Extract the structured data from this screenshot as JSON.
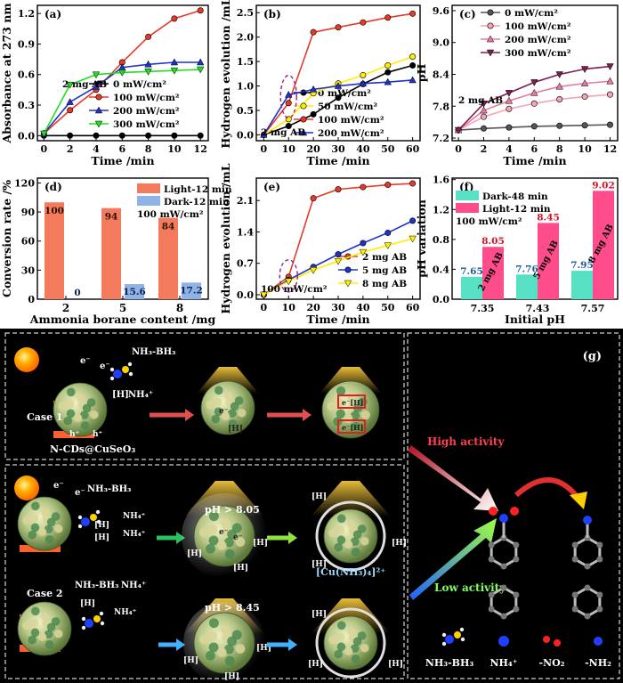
{
  "colors": {
    "black": "#000000",
    "red": "#e53a2a",
    "blue": "#1e32c8",
    "green": "#22dd22",
    "yellow": "#ffee00",
    "gray": "#555555",
    "pink1": "#f4a4b4",
    "pink2": "#e67aa0",
    "purple": "#7a1f4f",
    "salmon": "#f47a5e",
    "lightblue": "#8fb3e6",
    "cyan": "#57e0c4",
    "hotpink": "#ff4d8c",
    "scheme_bg": "#000000"
  },
  "chart_data": [
    {
      "panel": "(a)",
      "type": "line",
      "xlabel": "Time /min",
      "ylabel": "Absorbance at 273 nm",
      "xlim": [
        -0.5,
        12.6
      ],
      "ylim": [
        -0.05,
        1.28
      ],
      "xticks": [
        0,
        2,
        4,
        6,
        8,
        10,
        12
      ],
      "yticks": [
        0.0,
        0.3,
        0.6,
        0.9,
        1.2
      ],
      "xtick_labels": [
        "0",
        "2",
        "4",
        "6",
        "8",
        "10",
        "12"
      ],
      "ytick_labels": [
        "0.0",
        "0.3",
        "0.6",
        "0.9",
        "1.2"
      ],
      "annotation": "2 mg AB",
      "series": [
        {
          "name": "0 mW/cm²",
          "color": "black",
          "marker": "circle",
          "x": [
            0,
            2,
            4,
            6,
            8,
            10,
            12
          ],
          "y": [
            0.0,
            0.0,
            0.0,
            0.0,
            0.0,
            0.0,
            0.0
          ]
        },
        {
          "name": "100 mW/cm²",
          "color": "red",
          "marker": "circle",
          "x": [
            0,
            2,
            4,
            6,
            8,
            10,
            12
          ],
          "y": [
            0.02,
            0.25,
            0.45,
            0.72,
            0.97,
            1.15,
            1.23
          ]
        },
        {
          "name": "200 mW/cm²",
          "color": "blue",
          "marker": "triangle",
          "x": [
            0,
            2,
            4,
            6,
            8,
            10,
            12
          ],
          "y": [
            0.02,
            0.33,
            0.48,
            0.67,
            0.7,
            0.72,
            0.72
          ]
        },
        {
          "name": "300 mW/cm²",
          "color": "green",
          "marker": "down",
          "x": [
            0,
            2,
            4,
            6,
            8,
            10,
            12
          ],
          "y": [
            0.02,
            0.5,
            0.6,
            0.62,
            0.63,
            0.64,
            0.65
          ]
        }
      ]
    },
    {
      "panel": "(b)",
      "type": "line",
      "xlabel": "Time /min",
      "ylabel": "Hydrogen evolution /mL",
      "xlim": [
        -3,
        63
      ],
      "ylim": [
        -0.12,
        2.65
      ],
      "xticks": [
        0,
        10,
        20,
        30,
        40,
        50,
        60
      ],
      "yticks": [
        0.0,
        0.5,
        1.0,
        1.5,
        2.0,
        2.5
      ],
      "xtick_labels": [
        "0",
        "10",
        "20",
        "30",
        "40",
        "50",
        "60"
      ],
      "ytick_labels": [
        "0.0",
        "0.5",
        "1.0",
        "1.5",
        "2.0",
        "2.5"
      ],
      "annotation": "2 mg AB",
      "series": [
        {
          "name": "0 mW/cm²",
          "color": "black",
          "marker": "circle",
          "x": [
            0,
            10,
            20,
            30,
            40,
            50,
            60
          ],
          "y": [
            0.0,
            0.18,
            0.42,
            0.76,
            1.04,
            1.28,
            1.42
          ]
        },
        {
          "name": "50 mW/cm²",
          "color": "yellow",
          "marker": "circle",
          "x": [
            0,
            10,
            20,
            30,
            40,
            50,
            60
          ],
          "y": [
            0.0,
            0.32,
            0.85,
            1.05,
            1.22,
            1.42,
            1.6
          ]
        },
        {
          "name": "100 mW/cm²",
          "color": "red",
          "marker": "circle",
          "x": [
            0,
            10,
            20,
            30,
            40,
            50,
            60
          ],
          "y": [
            0.0,
            0.65,
            2.1,
            2.2,
            2.3,
            2.4,
            2.48
          ]
        },
        {
          "name": "200 mW/cm²",
          "color": "blue",
          "marker": "triangle",
          "x": [
            0,
            10,
            20,
            30,
            40,
            50,
            60
          ],
          "y": [
            0.0,
            0.82,
            0.93,
            1.0,
            1.05,
            1.08,
            1.12
          ]
        }
      ]
    },
    {
      "panel": "(c)",
      "type": "line",
      "xlabel": "Time /min",
      "ylabel": "pH",
      "xlim": [
        -0.5,
        12.6
      ],
      "ylim": [
        7.15,
        9.7
      ],
      "xticks": [
        0,
        2,
        4,
        6,
        8,
        10,
        12
      ],
      "yticks": [
        7.2,
        7.8,
        8.4,
        9.0,
        9.6
      ],
      "xtick_labels": [
        "0",
        "2",
        "4",
        "6",
        "8",
        "10",
        "12"
      ],
      "ytick_labels": [
        "7.2",
        "7.8",
        "8.4",
        "9.0",
        "9.6"
      ],
      "annotation": "2 mg AB",
      "series": [
        {
          "name": "0 mW/cm²",
          "color": "gray",
          "marker": "circle",
          "x": [
            0,
            2,
            4,
            6,
            8,
            10,
            12
          ],
          "y": [
            7.35,
            7.38,
            7.4,
            7.42,
            7.43,
            7.44,
            7.45
          ]
        },
        {
          "name": "100 mW/cm²",
          "color": "pink1",
          "marker": "circle",
          "x": [
            0,
            2,
            4,
            6,
            8,
            10,
            12
          ],
          "y": [
            7.35,
            7.6,
            7.75,
            7.85,
            7.93,
            7.98,
            8.02
          ]
        },
        {
          "name": "200 mW/cm²",
          "color": "pink2",
          "marker": "triangle",
          "x": [
            0,
            2,
            4,
            6,
            8,
            10,
            12
          ],
          "y": [
            7.35,
            7.72,
            7.9,
            8.05,
            8.17,
            8.23,
            8.27
          ]
        },
        {
          "name": "300 mW/cm²",
          "color": "purple",
          "marker": "down",
          "x": [
            0,
            2,
            4,
            6,
            8,
            10,
            12
          ],
          "y": [
            7.35,
            7.85,
            8.05,
            8.25,
            8.4,
            8.5,
            8.55
          ]
        }
      ]
    },
    {
      "panel": "(d)",
      "type": "bar",
      "xlabel": "Ammonia borane content /mg",
      "ylabel": "Conversion rate /%",
      "ylim": [
        0,
        125
      ],
      "yticks": [
        0,
        30,
        60,
        90,
        120
      ],
      "ytick_labels": [
        "0",
        "30",
        "60",
        "90",
        "120"
      ],
      "categories": [
        "2",
        "5",
        "8"
      ],
      "annotation": "100 mW/cm²",
      "series": [
        {
          "name": "Light-12 min",
          "color": "salmon",
          "values": [
            100,
            94,
            84
          ],
          "labels": [
            "100",
            "94",
            "84"
          ]
        },
        {
          "name": "Dark-12 min",
          "color": "lightblue",
          "values": [
            0,
            15.6,
            17.2
          ],
          "labels": [
            "0",
            "15.6",
            "17.2"
          ]
        }
      ]
    },
    {
      "panel": "(e)",
      "type": "line",
      "xlabel": "Time /min",
      "ylabel": "Hydrogen evolution /mL",
      "xlim": [
        -3,
        63
      ],
      "ylim": [
        -0.1,
        2.6
      ],
      "xticks": [
        0,
        10,
        20,
        30,
        40,
        50,
        60
      ],
      "yticks": [
        0.0,
        0.7,
        1.4,
        2.1
      ],
      "xtick_labels": [
        "0",
        "10",
        "20",
        "30",
        "40",
        "50",
        "60"
      ],
      "ytick_labels": [
        "0.0",
        "0.7",
        "1.4",
        "2.1"
      ],
      "annotation": "100 mW/cm²",
      "series": [
        {
          "name": "2 mg AB",
          "color": "red",
          "marker": "circle",
          "x": [
            0,
            10,
            20,
            30,
            40,
            50,
            60
          ],
          "y": [
            0.0,
            0.4,
            2.15,
            2.35,
            2.4,
            2.45,
            2.48
          ]
        },
        {
          "name": "5 mg AB",
          "color": "blue",
          "marker": "circle",
          "x": [
            0,
            10,
            20,
            30,
            40,
            50,
            60
          ],
          "y": [
            0.0,
            0.33,
            0.62,
            0.9,
            1.15,
            1.38,
            1.65
          ]
        },
        {
          "name": "8 mg AB",
          "color": "yellow",
          "marker": "down",
          "x": [
            0,
            10,
            20,
            30,
            40,
            50,
            60
          ],
          "y": [
            0.0,
            0.3,
            0.55,
            0.75,
            0.95,
            1.1,
            1.25
          ]
        }
      ]
    },
    {
      "panel": "(f)",
      "type": "bar",
      "xlabel": "Initial pH",
      "ylabel": "pH variation",
      "ylim": [
        0,
        1.62
      ],
      "yticks": [
        0.0,
        0.4,
        0.8,
        1.2,
        1.6
      ],
      "ytick_labels": [
        "0.0",
        "0.4",
        "0.8",
        "1.2",
        "1.6"
      ],
      "categories": [
        "7.35",
        "7.43",
        "7.57"
      ],
      "annotation": "100 mW/cm²",
      "bar_notes": [
        "2 mg AB",
        "5 mg AB",
        "8 mg AB"
      ],
      "series": [
        {
          "name": "Dark-48 min",
          "color": "cyan",
          "values": [
            0.3,
            0.33,
            0.38
          ],
          "labels": [
            "7.65",
            "7.76",
            "7.95"
          ]
        },
        {
          "name": "Light-12 min",
          "color": "hotpink",
          "values": [
            0.7,
            1.02,
            1.45
          ],
          "labels": [
            "8.05",
            "8.45",
            "9.02"
          ]
        }
      ]
    }
  ],
  "scheme": {
    "panel_label": "(g)",
    "case1": "Case 1",
    "case2": "Case 2",
    "catalyst": "N-CDs@CuSeO₃",
    "nh3bh3": "NH₃-BH₃",
    "nh4": "NH₄⁺",
    "h": "[H]",
    "e": "e⁻",
    "hplus": "h⁺",
    "ph_805": "pH > 8.05",
    "ph_845": "pH > 8.45",
    "complex": "[Cu(NH₃)₄]²⁺",
    "high": "High activity",
    "low": "Low activity",
    "no2": "-NO₂",
    "nh2": "-NH₂",
    "legend_nh3bh3": "NH₃-BH₃",
    "legend_nh4": "NH₄⁺",
    "legend_no2": "-NO₂",
    "legend_nh2": "-NH₂"
  }
}
